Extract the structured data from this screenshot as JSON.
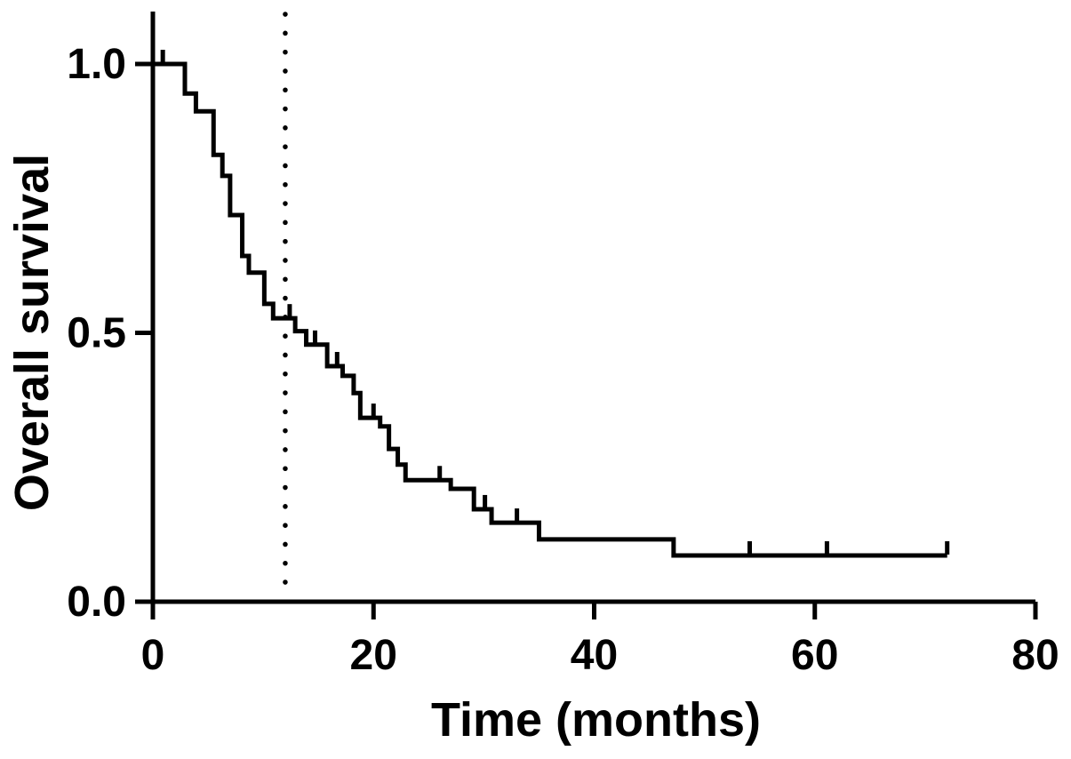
{
  "figure": {
    "description": "Kaplan-Meier overall survival step curve with censor tick marks and a vertical dotted reference line at 12 months",
    "background": "#ffffff",
    "foreground": "#000000"
  },
  "chart_data": {
    "type": "line",
    "subtype": "kaplan_meier_step",
    "title": "",
    "xlabel": "Time (months)",
    "ylabel": "Overall survival",
    "xlim": [
      0,
      80
    ],
    "ylim": [
      0,
      1
    ],
    "grid": false,
    "legend": null,
    "x_ticks": [
      {
        "value": 0,
        "label": "0"
      },
      {
        "value": 20,
        "label": "20"
      },
      {
        "value": 40,
        "label": "40"
      },
      {
        "value": 60,
        "label": "60"
      },
      {
        "value": 80,
        "label": "80"
      }
    ],
    "y_ticks": [
      {
        "value": 0.0,
        "label": "0.0"
      },
      {
        "value": 0.5,
        "label": "0.5"
      },
      {
        "value": 1.0,
        "label": "1.0"
      }
    ],
    "series": [
      {
        "name": "Overall survival",
        "color": "#000000",
        "line_width": 5,
        "steps": [
          [
            0.0,
            1.0
          ],
          [
            2.9,
            0.945
          ],
          [
            3.9,
            0.912
          ],
          [
            5.5,
            0.831
          ],
          [
            6.3,
            0.792
          ],
          [
            7.0,
            0.719
          ],
          [
            8.1,
            0.643
          ],
          [
            8.7,
            0.612
          ],
          [
            10.1,
            0.554
          ],
          [
            10.9,
            0.527
          ],
          [
            12.9,
            0.503
          ],
          [
            13.9,
            0.478
          ],
          [
            15.8,
            0.438
          ],
          [
            17.2,
            0.42
          ],
          [
            18.2,
            0.388
          ],
          [
            18.8,
            0.342
          ],
          [
            20.6,
            0.326
          ],
          [
            21.4,
            0.284
          ],
          [
            22.2,
            0.255
          ],
          [
            22.9,
            0.226
          ],
          [
            27.0,
            0.21
          ],
          [
            29.1,
            0.172
          ],
          [
            30.7,
            0.147
          ],
          [
            35.0,
            0.116
          ],
          [
            47.2,
            0.086
          ]
        ],
        "end_time": 72,
        "censor_marks": [
          [
            0.9,
            1.0
          ],
          [
            12.4,
            0.527
          ],
          [
            14.7,
            0.478
          ],
          [
            16.7,
            0.438
          ],
          [
            20.0,
            0.342
          ],
          [
            26.0,
            0.226
          ],
          [
            30.1,
            0.172
          ],
          [
            33.0,
            0.147
          ],
          [
            54.1,
            0.086
          ],
          [
            61.1,
            0.086
          ],
          [
            72.0,
            0.086
          ]
        ]
      }
    ],
    "reference_lines": [
      {
        "axis": "x",
        "value": 12,
        "style": "dotted",
        "color": "#000000",
        "note": "vertical dotted line at 12 months (median survival marker)"
      }
    ]
  }
}
